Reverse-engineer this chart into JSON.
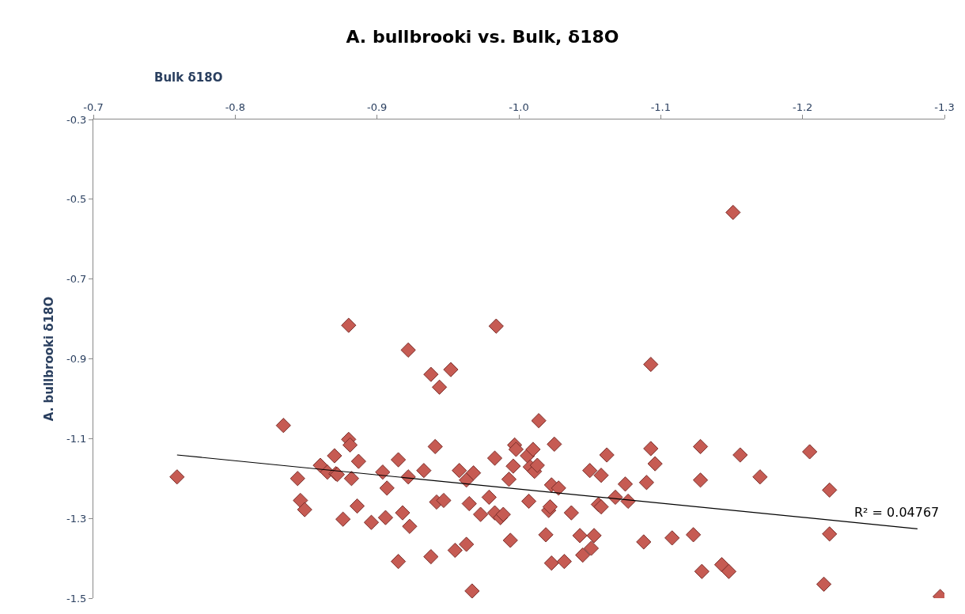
{
  "chart_data": {
    "type": "scatter",
    "title": "A. bullbrooki vs. Bulk, δ18O",
    "xlabel": "Bulk δ18O",
    "ylabel": "A. bullbrooki δ18O",
    "xlim": [
      -0.7,
      -1.3
    ],
    "xticks": [
      -0.7,
      -0.8,
      -0.9,
      {
        "value": -1.0,
        "label": "-1.0"
      },
      -1.1,
      -1.2,
      -1.3
    ],
    "ylim": [
      -1.5,
      -0.3
    ],
    "yticks": [
      -0.3,
      -0.5,
      -0.7,
      -0.9,
      -1.1,
      -1.3,
      -1.5
    ],
    "marker": "diamond",
    "annotations": [
      "R² = 0.04767"
    ],
    "series": [
      {
        "color": "#c65b53",
        "x": [
          -0.759,
          -0.834,
          -0.844,
          -0.846,
          -0.849,
          -0.86,
          -0.865,
          -0.87,
          -0.871,
          -0.872,
          -0.876,
          -0.88,
          -0.88,
          -0.881,
          -0.882,
          -0.887,
          -0.886,
          -0.896,
          -0.904,
          -0.906,
          -0.907,
          -0.915,
          -0.915,
          -0.918,
          -0.922,
          -0.922,
          -0.923,
          -0.933,
          -0.938,
          -0.938,
          -0.941,
          -0.942,
          -0.944,
          -0.947,
          -0.952,
          -0.955,
          -0.958,
          -0.963,
          -0.963,
          -0.965,
          -0.967,
          -0.968,
          -0.973,
          -0.979,
          -0.983,
          -0.983,
          -0.984,
          -0.987,
          -0.989,
          -0.993,
          -0.994,
          -0.997,
          -0.996,
          -0.998,
          -1.006,
          -1.007,
          -1.008,
          -1.01,
          -1.011,
          -1.013,
          -1.014,
          -1.019,
          -1.021,
          -1.022,
          -1.023,
          -1.023,
          -1.025,
          -1.028,
          -1.032,
          -1.037,
          -1.043,
          -1.045,
          -1.05,
          -1.051,
          -1.053,
          -1.056,
          -1.058,
          -1.058,
          -1.062,
          -1.068,
          -1.075,
          -1.077,
          -1.088,
          -1.09,
          -1.093,
          -1.093,
          -1.096,
          -1.108,
          -1.123,
          -1.128,
          -1.128,
          -1.129,
          -1.143,
          -1.148,
          -1.151,
          -1.156,
          -1.17,
          -1.205,
          -1.215,
          -1.219,
          -1.219,
          -1.297
        ],
        "values": [
          -1.196,
          -1.067,
          -1.2,
          -1.255,
          -1.278,
          -1.167,
          -1.184,
          -1.143,
          -1.188,
          -1.19,
          -1.302,
          -0.816,
          -1.102,
          -1.116,
          -1.2,
          -1.157,
          -1.269,
          -1.31,
          -1.184,
          -1.298,
          -1.224,
          -1.153,
          -1.408,
          -1.286,
          -1.196,
          -0.878,
          -1.32,
          -1.18,
          -0.939,
          -1.396,
          -1.12,
          -1.259,
          -0.971,
          -1.255,
          -0.927,
          -1.38,
          -1.18,
          -1.204,
          -1.365,
          -1.263,
          -1.482,
          -1.186,
          -1.29,
          -1.247,
          -1.149,
          -1.286,
          -0.818,
          -1.298,
          -1.29,
          -1.202,
          -1.355,
          -1.116,
          -1.169,
          -1.127,
          -1.143,
          -1.257,
          -1.171,
          -1.127,
          -1.182,
          -1.167,
          -1.055,
          -1.341,
          -1.28,
          -1.271,
          -1.216,
          -1.412,
          -1.114,
          -1.224,
          -1.408,
          -1.286,
          -1.343,
          -1.392,
          -1.18,
          -1.375,
          -1.343,
          -1.265,
          -1.192,
          -1.271,
          -1.141,
          -1.247,
          -1.214,
          -1.257,
          -1.359,
          -1.21,
          -0.914,
          -1.125,
          -1.163,
          -1.349,
          -1.341,
          -1.12,
          -1.204,
          -1.433,
          -1.416,
          -1.433,
          -0.533,
          -1.141,
          -1.196,
          -1.133,
          -1.465,
          -1.229,
          -1.339,
          -1.496
        ]
      },
      {
        "type": "line",
        "color": "#000000",
        "marker": "none",
        "line_style": "solid",
        "x": [
          -0.759,
          -1.281
        ],
        "values": [
          -1.141,
          -1.326
        ]
      }
    ]
  }
}
